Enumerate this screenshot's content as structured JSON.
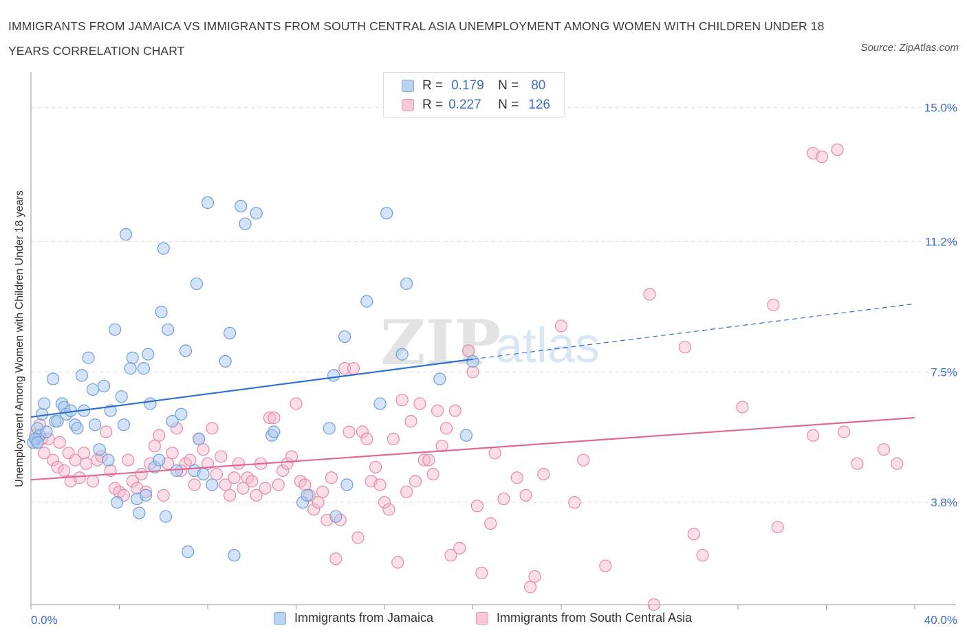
{
  "header": {
    "title": "IMMIGRANTS FROM JAMAICA VS IMMIGRANTS FROM SOUTH CENTRAL ASIA UNEMPLOYMENT AMONG WOMEN WITH CHILDREN UNDER 18 YEARS CORRELATION CHART",
    "source": "Source: ZipAtlas.com"
  },
  "legend": {
    "r_label": "R =",
    "n_label": "N =",
    "series1": {
      "r": "0.179",
      "n": "80"
    },
    "series2": {
      "r": "0.227",
      "n": "126"
    }
  },
  "watermark": {
    "zip": "ZIP",
    "atlas": "atlas"
  },
  "colors": {
    "jamaica_fill": "#a9c8ef",
    "jamaica_stroke": "#6f9fd8",
    "jamaica_line": "#2f6fcf",
    "sca_fill": "#f4b8cb",
    "sca_stroke": "#e58aa8",
    "sca_line": "#e06a96",
    "axis_label": "#3a6fc4"
  },
  "chart_data": {
    "type": "scatter",
    "title": "IMMIGRANTS FROM JAMAICA VS IMMIGRANTS FROM SOUTH CENTRAL ASIA UNEMPLOYMENT AMONG WOMEN WITH CHILDREN UNDER 18 YEARS CORRELATION CHART",
    "xlabel": "",
    "ylabel": "Unemployment Among Women with Children Under 18 years",
    "xlim": [
      0,
      40
    ],
    "ylim": [
      0.9,
      16.0
    ],
    "x_tick_labels": [
      "0.0%",
      "40.0%"
    ],
    "y_ticks": [
      3.8,
      7.5,
      11.2,
      15.0
    ],
    "y_tick_labels": [
      "3.8%",
      "7.5%",
      "11.2%",
      "15.0%"
    ],
    "grid": true,
    "legend_position": "top-center",
    "series": [
      {
        "name": "Immigrants from Jamaica",
        "r": 0.179,
        "n": 80,
        "trend": {
          "x0": 0,
          "y0": 6.22,
          "x1": 20,
          "y1": 7.86,
          "dashed_to_x": 40,
          "dashed_to_y": 9.43
        },
        "points": [
          [
            0.1,
            5.5
          ],
          [
            0.2,
            5.6
          ],
          [
            0.3,
            5.9
          ],
          [
            0.4,
            5.7
          ],
          [
            0.5,
            6.3
          ],
          [
            0.6,
            6.6
          ],
          [
            0.7,
            5.8
          ],
          [
            1.0,
            7.3
          ],
          [
            1.1,
            6.1
          ],
          [
            1.2,
            6.1
          ],
          [
            1.4,
            6.6
          ],
          [
            1.5,
            6.5
          ],
          [
            1.6,
            6.3
          ],
          [
            1.8,
            6.4
          ],
          [
            2.0,
            6.0
          ],
          [
            2.1,
            5.9
          ],
          [
            2.3,
            7.4
          ],
          [
            2.4,
            6.4
          ],
          [
            2.6,
            7.9
          ],
          [
            2.8,
            7.0
          ],
          [
            2.9,
            6.0
          ],
          [
            3.1,
            5.3
          ],
          [
            3.3,
            7.1
          ],
          [
            3.5,
            5.0
          ],
          [
            3.6,
            6.4
          ],
          [
            3.8,
            8.7
          ],
          [
            3.9,
            3.8
          ],
          [
            4.1,
            6.8
          ],
          [
            4.2,
            6.0
          ],
          [
            4.3,
            11.4
          ],
          [
            4.5,
            7.6
          ],
          [
            4.6,
            7.9
          ],
          [
            4.8,
            3.9
          ],
          [
            4.9,
            3.5
          ],
          [
            5.1,
            7.6
          ],
          [
            5.2,
            4.0
          ],
          [
            5.3,
            8.0
          ],
          [
            5.4,
            6.6
          ],
          [
            5.6,
            4.8
          ],
          [
            5.8,
            5.0
          ],
          [
            5.9,
            9.2
          ],
          [
            6.0,
            11.0
          ],
          [
            6.1,
            3.4
          ],
          [
            6.2,
            8.7
          ],
          [
            6.4,
            6.1
          ],
          [
            6.6,
            4.7
          ],
          [
            6.8,
            6.3
          ],
          [
            7.0,
            8.1
          ],
          [
            7.1,
            2.4
          ],
          [
            7.4,
            4.7
          ],
          [
            7.5,
            10.0
          ],
          [
            7.6,
            5.6
          ],
          [
            7.8,
            4.6
          ],
          [
            8.0,
            12.3
          ],
          [
            8.2,
            4.3
          ],
          [
            8.8,
            7.8
          ],
          [
            9.0,
            8.6
          ],
          [
            9.2,
            2.3
          ],
          [
            9.5,
            12.2
          ],
          [
            9.7,
            11.7
          ],
          [
            10.2,
            12.0
          ],
          [
            10.9,
            5.7
          ],
          [
            11.0,
            5.8
          ],
          [
            12.3,
            3.8
          ],
          [
            12.5,
            4.0
          ],
          [
            13.5,
            5.9
          ],
          [
            13.7,
            7.4
          ],
          [
            13.8,
            3.4
          ],
          [
            14.2,
            8.5
          ],
          [
            14.3,
            4.3
          ],
          [
            15.2,
            9.5
          ],
          [
            15.8,
            6.6
          ],
          [
            16.1,
            12.0
          ],
          [
            16.8,
            8.0
          ],
          [
            17.0,
            10.0
          ],
          [
            18.5,
            7.3
          ],
          [
            19.7,
            5.7
          ],
          [
            20.0,
            7.8
          ],
          [
            0.2,
            5.6
          ],
          [
            0.3,
            5.5
          ]
        ]
      },
      {
        "name": "Immigrants from South Central Asia",
        "r": 0.227,
        "n": 126,
        "trend": {
          "x0": 0,
          "y0": 4.44,
          "x1": 40,
          "y1": 6.2
        },
        "points": [
          [
            0.2,
            5.7
          ],
          [
            0.3,
            5.5
          ],
          [
            0.4,
            6.0
          ],
          [
            0.5,
            5.6
          ],
          [
            0.6,
            5.2
          ],
          [
            0.8,
            5.6
          ],
          [
            1.0,
            5.0
          ],
          [
            1.2,
            4.8
          ],
          [
            1.3,
            5.5
          ],
          [
            1.5,
            4.7
          ],
          [
            1.7,
            5.2
          ],
          [
            1.8,
            4.4
          ],
          [
            2.0,
            5.0
          ],
          [
            2.2,
            4.5
          ],
          [
            2.4,
            5.2
          ],
          [
            2.5,
            4.9
          ],
          [
            2.8,
            4.4
          ],
          [
            3.0,
            5.0
          ],
          [
            3.2,
            5.1
          ],
          [
            3.4,
            5.8
          ],
          [
            3.6,
            4.7
          ],
          [
            3.8,
            4.2
          ],
          [
            4.0,
            4.1
          ],
          [
            4.2,
            4.0
          ],
          [
            4.4,
            5.0
          ],
          [
            4.6,
            4.4
          ],
          [
            4.8,
            4.2
          ],
          [
            5.0,
            4.6
          ],
          [
            5.2,
            4.1
          ],
          [
            5.4,
            4.9
          ],
          [
            5.6,
            5.4
          ],
          [
            5.8,
            5.7
          ],
          [
            6.0,
            4.0
          ],
          [
            6.2,
            4.9
          ],
          [
            6.4,
            5.2
          ],
          [
            6.6,
            5.9
          ],
          [
            6.8,
            4.7
          ],
          [
            7.0,
            4.9
          ],
          [
            7.2,
            5.0
          ],
          [
            7.4,
            4.3
          ],
          [
            7.6,
            5.6
          ],
          [
            7.8,
            5.3
          ],
          [
            8.0,
            4.9
          ],
          [
            8.2,
            5.9
          ],
          [
            8.4,
            4.6
          ],
          [
            8.6,
            5.1
          ],
          [
            8.8,
            4.3
          ],
          [
            9.0,
            4.0
          ],
          [
            9.2,
            4.5
          ],
          [
            9.4,
            4.9
          ],
          [
            9.6,
            4.2
          ],
          [
            9.8,
            4.5
          ],
          [
            10.0,
            4.4
          ],
          [
            10.2,
            4.0
          ],
          [
            10.4,
            4.9
          ],
          [
            10.6,
            4.2
          ],
          [
            10.8,
            6.2
          ],
          [
            11.0,
            6.2
          ],
          [
            11.2,
            4.3
          ],
          [
            11.4,
            4.7
          ],
          [
            11.6,
            4.9
          ],
          [
            11.8,
            5.1
          ],
          [
            12.0,
            6.6
          ],
          [
            12.2,
            4.4
          ],
          [
            12.4,
            4.3
          ],
          [
            12.6,
            4.0
          ],
          [
            12.8,
            3.6
          ],
          [
            13.0,
            3.8
          ],
          [
            13.2,
            4.1
          ],
          [
            13.4,
            3.3
          ],
          [
            13.6,
            4.5
          ],
          [
            13.8,
            2.2
          ],
          [
            14.0,
            3.3
          ],
          [
            14.2,
            7.6
          ],
          [
            14.4,
            5.8
          ],
          [
            14.6,
            7.6
          ],
          [
            14.8,
            2.8
          ],
          [
            15.0,
            5.8
          ],
          [
            15.2,
            5.6
          ],
          [
            15.4,
            4.4
          ],
          [
            15.6,
            4.8
          ],
          [
            15.8,
            4.3
          ],
          [
            16.0,
            3.8
          ],
          [
            16.2,
            3.6
          ],
          [
            16.4,
            5.6
          ],
          [
            16.6,
            2.1
          ],
          [
            16.8,
            6.7
          ],
          [
            17.0,
            4.1
          ],
          [
            17.2,
            6.1
          ],
          [
            17.4,
            4.4
          ],
          [
            17.6,
            6.6
          ],
          [
            17.8,
            5.0
          ],
          [
            18.0,
            5.0
          ],
          [
            18.2,
            4.6
          ],
          [
            18.4,
            6.4
          ],
          [
            18.6,
            5.4
          ],
          [
            18.8,
            5.9
          ],
          [
            19.0,
            2.3
          ],
          [
            19.2,
            6.4
          ],
          [
            19.4,
            2.5
          ],
          [
            19.8,
            8.1
          ],
          [
            20.0,
            7.5
          ],
          [
            20.2,
            3.7
          ],
          [
            20.4,
            1.8
          ],
          [
            20.8,
            3.2
          ],
          [
            21.0,
            5.2
          ],
          [
            21.4,
            3.9
          ],
          [
            22.0,
            4.5
          ],
          [
            22.4,
            4.0
          ],
          [
            22.6,
            1.4
          ],
          [
            22.8,
            1.7
          ],
          [
            23.2,
            4.6
          ],
          [
            24.0,
            8.8
          ],
          [
            24.6,
            3.8
          ],
          [
            25.0,
            5.0
          ],
          [
            26.0,
            2.0
          ],
          [
            28.0,
            9.7
          ],
          [
            28.2,
            0.9
          ],
          [
            29.6,
            8.2
          ],
          [
            30.0,
            2.9
          ],
          [
            30.4,
            2.3
          ],
          [
            32.2,
            6.5
          ],
          [
            33.6,
            9.4
          ],
          [
            33.8,
            3.1
          ],
          [
            35.4,
            5.7
          ],
          [
            36.8,
            5.8
          ]
        ]
      }
    ],
    "extra_outliers_sca": [
      [
        35.4,
        13.7
      ],
      [
        35.8,
        13.6
      ],
      [
        36.5,
        13.8
      ],
      [
        37.4,
        4.9
      ],
      [
        38.6,
        5.3
      ],
      [
        39.2,
        4.9
      ]
    ]
  },
  "bottom_legend": {
    "item1": "Immigrants from Jamaica",
    "item2": "Immigrants from South Central Asia"
  }
}
